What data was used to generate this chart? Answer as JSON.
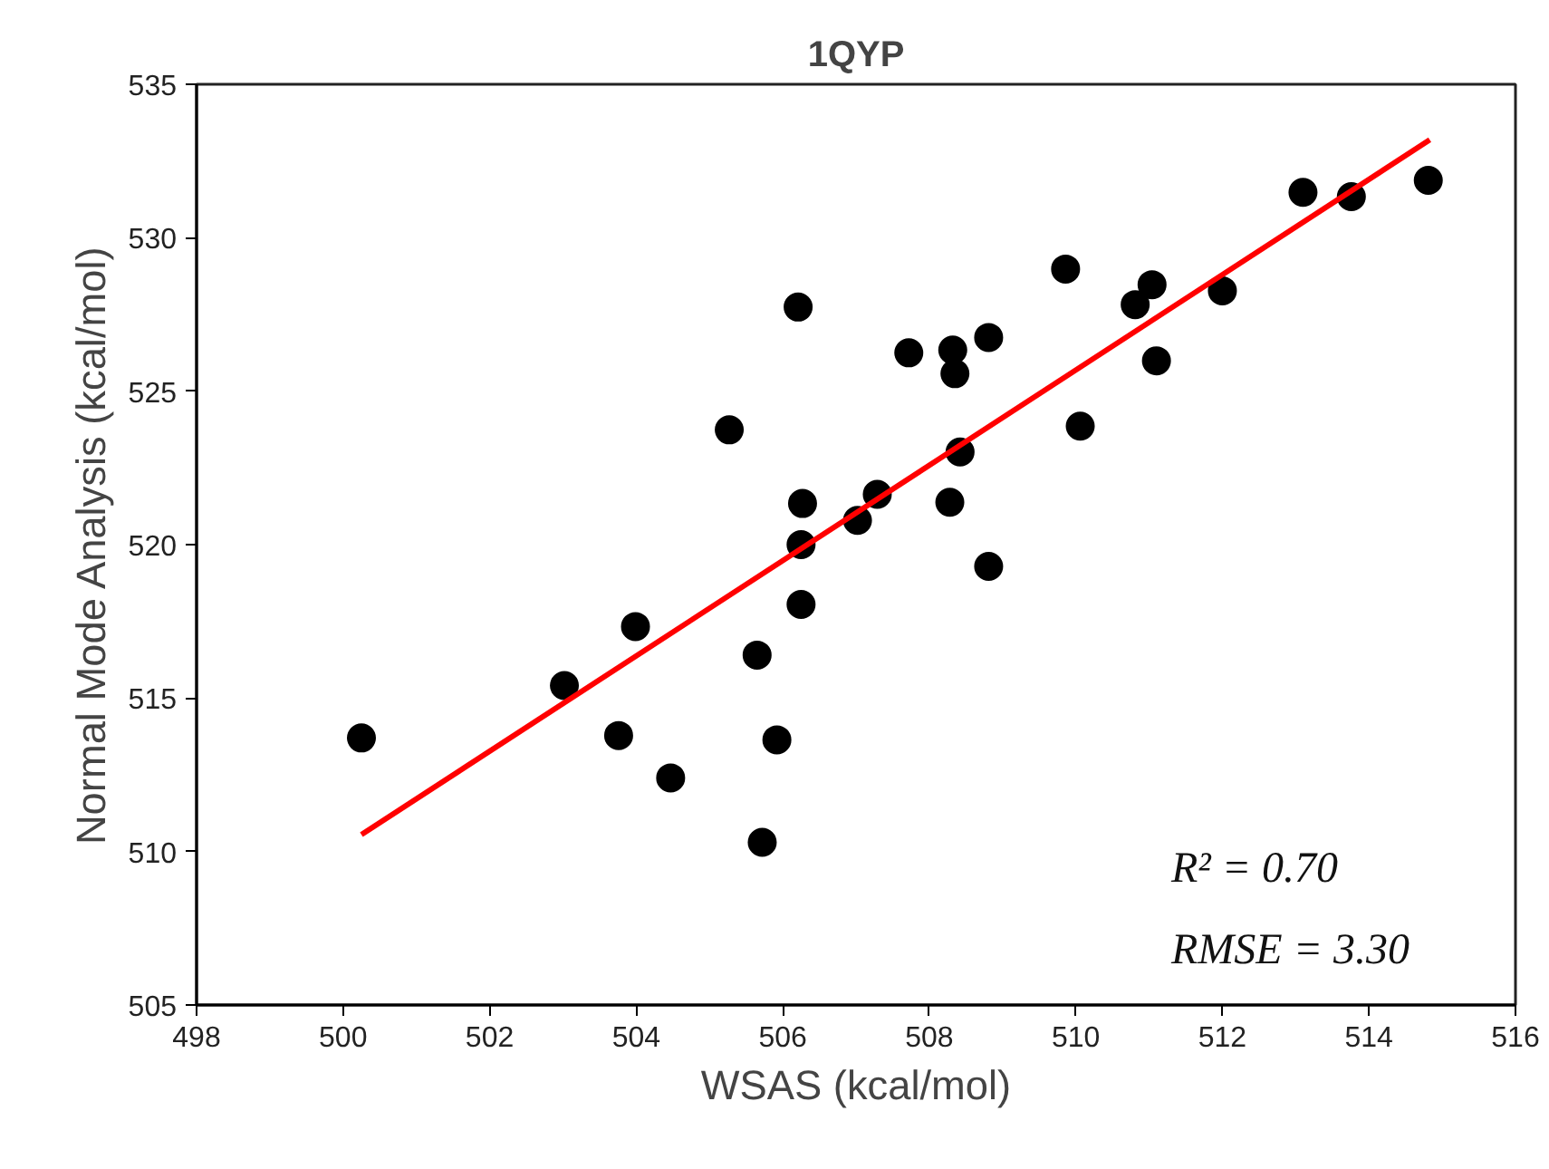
{
  "chart_data": {
    "type": "scatter",
    "title": "1QYP",
    "xlabel": "WSAS (kcal/mol)",
    "ylabel": "Normal Mode Analysis (kcal/mol)",
    "xlim": [
      498,
      516
    ],
    "xticks": [
      498,
      500,
      502,
      504,
      506,
      508,
      510,
      512,
      514,
      516
    ],
    "ylim": [
      505,
      535
    ],
    "yticks": [
      505,
      510,
      515,
      520,
      525,
      530,
      535
    ],
    "grid": false,
    "annotations": [
      "R² = 0.70",
      "RMSE = 3.30"
    ],
    "series": [
      {
        "marker": "circle",
        "color": "#000000",
        "x": [
          500.25,
          503.02,
          503.99,
          503.76,
          504.47,
          505.65,
          505.92,
          505.72,
          506.25,
          506.25,
          507.02,
          506.21,
          505.27,
          506.27,
          507.29,
          507.72,
          508.32,
          508.35,
          508.81,
          509.86,
          511.04,
          510.81,
          512.0,
          511.1,
          510.06,
          508.42,
          508.28,
          513.1,
          513.76,
          514.81,
          508.81
        ],
        "values": [
          513.7,
          515.41,
          517.33,
          513.78,
          512.4,
          516.4,
          513.64,
          510.3,
          518.05,
          520.0,
          520.79,
          527.74,
          523.74,
          521.34,
          521.64,
          526.25,
          526.34,
          525.57,
          526.75,
          528.98,
          528.47,
          527.82,
          528.27,
          525.99,
          523.86,
          523.02,
          521.38,
          531.48,
          531.34,
          531.87,
          519.29
        ]
      },
      {
        "type": "line",
        "color": "#ff0000",
        "x": [
          500.25,
          514.83
        ],
        "values": [
          510.55,
          533.19
        ]
      }
    ]
  }
}
